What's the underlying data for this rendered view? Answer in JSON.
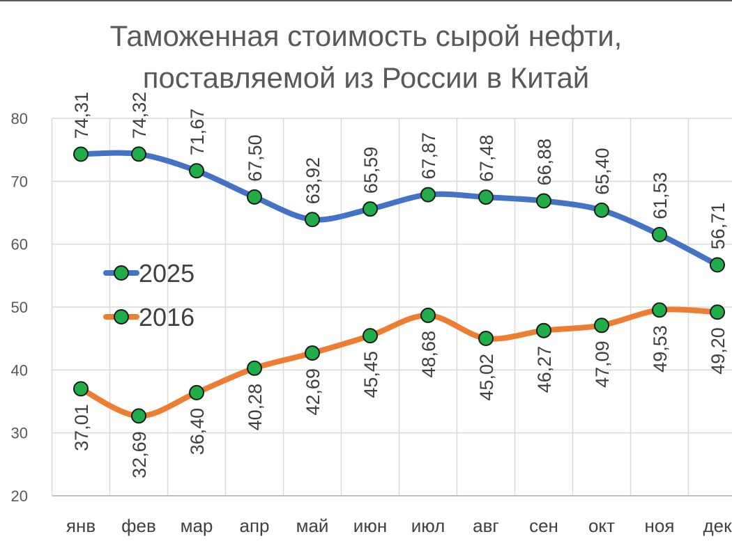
{
  "chart_data": {
    "type": "line",
    "title": [
      "Таможенная стоимость сырой нефти,",
      "поставляемой из России в Китай"
    ],
    "categories": [
      "янв",
      "фев",
      "мар",
      "апр",
      "май",
      "июн",
      "июл",
      "авг",
      "сен",
      "окт",
      "ноя",
      "дек"
    ],
    "ylim": [
      20,
      80
    ],
    "yticks": [
      20,
      30,
      40,
      50,
      60,
      70,
      80
    ],
    "grid": true,
    "legend_position": "left",
    "series": [
      {
        "name": "2025",
        "color": "#4472c4",
        "marker_color": "#1fae48",
        "values": [
          74.31,
          74.32,
          71.67,
          67.5,
          63.92,
          65.59,
          67.87,
          67.48,
          66.88,
          65.4,
          61.53,
          56.71
        ],
        "labels": [
          "74,31",
          "74,32",
          "71,67",
          "67,50",
          "63,92",
          "65,59",
          "67,87",
          "67,48",
          "66,88",
          "65,40",
          "61,53",
          "56,71"
        ]
      },
      {
        "name": "2016",
        "color": "#ed7d31",
        "marker_color": "#1fae48",
        "values": [
          37.01,
          32.69,
          36.4,
          40.28,
          42.69,
          45.45,
          48.68,
          45.02,
          46.27,
          47.09,
          49.53,
          49.2
        ],
        "labels": [
          "37,01",
          "32,69",
          "36,40",
          "40,28",
          "42,69",
          "45,45",
          "48,68",
          "45,02",
          "46,27",
          "47,09",
          "49,53",
          "49,20"
        ]
      }
    ]
  }
}
